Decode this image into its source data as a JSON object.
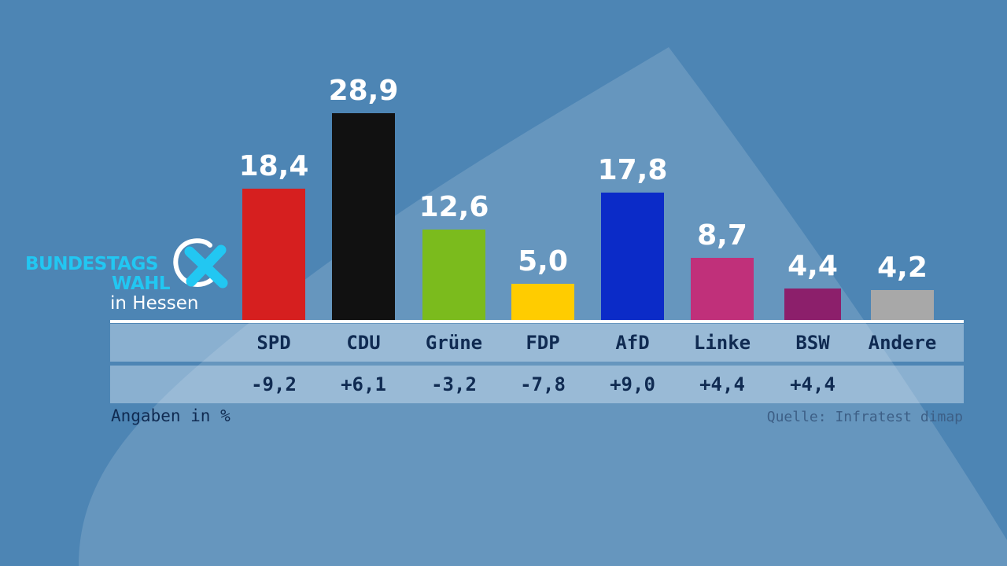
{
  "logo": {
    "line1": "BUNDESTAGS",
    "line2": "WAHL",
    "line3": "in Hessen",
    "icon": "ballot-cross-icon",
    "accent_color": "#22c7f2"
  },
  "chart_data": {
    "type": "bar",
    "categories": [
      "SPD",
      "CDU",
      "Grüne",
      "FDP",
      "AfD",
      "Linke",
      "BSW",
      "Andere"
    ],
    "values": [
      18.4,
      28.9,
      12.6,
      5.0,
      17.8,
      8.7,
      4.4,
      4.2
    ],
    "value_labels": [
      "18,4",
      "28,9",
      "12,6",
      "5,0",
      "17,8",
      "8,7",
      "4,4",
      "4,2"
    ],
    "changes": [
      "-9,2",
      "+6,1",
      "-3,2",
      "-7,8",
      "+9,0",
      "+4,4",
      "+4,4",
      ""
    ],
    "colors": [
      "#d61f1f",
      "#111111",
      "#7bbb1d",
      "#ffcc00",
      "#0b2bc8",
      "#c0307a",
      "#8c1f6b",
      "#a8a8a8"
    ],
    "ylim": [
      0,
      28.9
    ],
    "grid": false,
    "legend": "none"
  },
  "footer": {
    "unit_note": "Angaben in %",
    "source": "Quelle: Infratest dimap"
  },
  "background_color": "#4d85b4"
}
